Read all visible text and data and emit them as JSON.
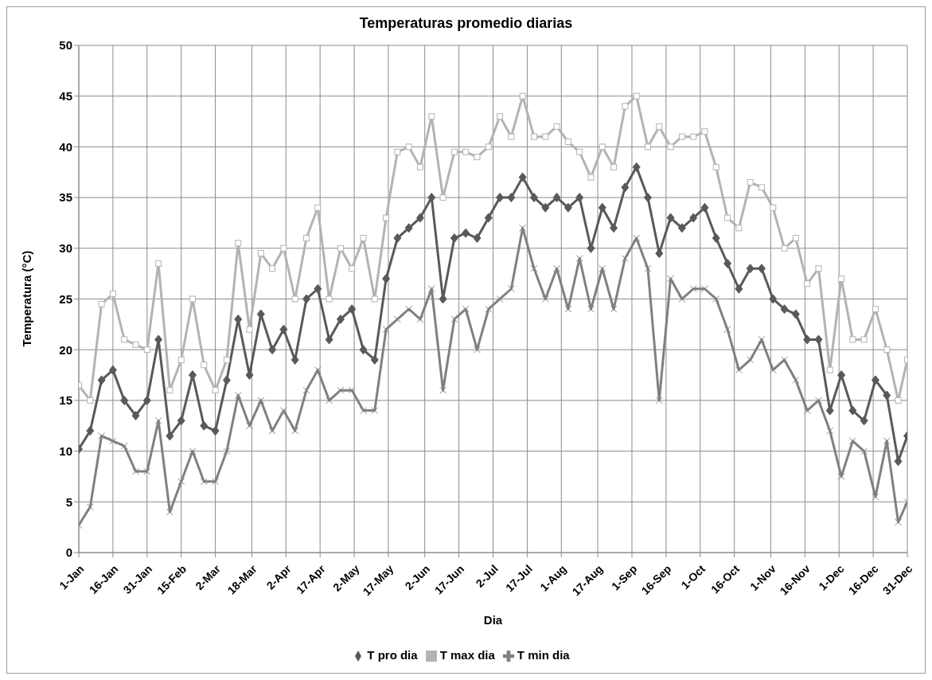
{
  "chart_data": {
    "type": "line",
    "title": "Temperaturas promedio diarias",
    "xlabel": "Dia",
    "ylabel": "Temperatura (°C)",
    "x": [
      "--01-01",
      "--01-06",
      "--01-11",
      "--01-16",
      "--01-21",
      "--01-26",
      "--01-31",
      "--02-05",
      "--02-10",
      "--02-15",
      "--02-20",
      "--02-25",
      "--03-02",
      "--03-07",
      "--03-12",
      "--03-17",
      "--03-22",
      "--03-27",
      "--04-01",
      "--04-06",
      "--04-11",
      "--04-16",
      "--04-21",
      "--04-26",
      "--05-01",
      "--05-06",
      "--05-11",
      "--05-16",
      "--05-21",
      "--05-26",
      "--05-31",
      "--06-05",
      "--06-10",
      "--06-15",
      "--06-20",
      "--06-25",
      "--06-30",
      "--07-05",
      "--07-10",
      "--07-15",
      "--07-20",
      "--07-25",
      "--07-30",
      "--08-04",
      "--08-09",
      "--08-14",
      "--08-19",
      "--08-24",
      "--08-29",
      "--09-03",
      "--09-08",
      "--09-13",
      "--09-18",
      "--09-23",
      "--09-28",
      "--10-03",
      "--10-08",
      "--10-13",
      "--10-18",
      "--10-23",
      "--10-28",
      "--11-02",
      "--11-07",
      "--11-12",
      "--11-17",
      "--11-22",
      "--11-27",
      "--12-02",
      "--12-07",
      "--12-12",
      "--12-17",
      "--12-22",
      "--12-27",
      "--12-31"
    ],
    "series": [
      {
        "name": "T pro dia",
        "color": "#595959",
        "marker": "diamond",
        "values": [
          10.2,
          12,
          17,
          18,
          15,
          13.5,
          15,
          21,
          11.5,
          13,
          17.5,
          12.5,
          12,
          17,
          23,
          17.5,
          23.5,
          20,
          22,
          19,
          25,
          26,
          21,
          23,
          24,
          20,
          19,
          27,
          31,
          32,
          33,
          35,
          25,
          31,
          31.5,
          31,
          33,
          35,
          35,
          37,
          35,
          34,
          35,
          34,
          35,
          30,
          34,
          32,
          36,
          38,
          35,
          29.5,
          33,
          32,
          33,
          34,
          31,
          28.5,
          26,
          28,
          28,
          25,
          24,
          23.5,
          21,
          21,
          14,
          17.5,
          14,
          13,
          17,
          15.5,
          9,
          11.5
        ]
      },
      {
        "name": "T max dia",
        "color": "#b3b3b3",
        "marker": "square",
        "values": [
          16.5,
          15,
          24.5,
          25.5,
          21,
          20.5,
          20,
          28.5,
          16,
          19,
          25,
          18.5,
          16,
          19,
          30.5,
          22,
          29.5,
          28,
          30,
          25,
          31,
          34,
          25,
          30,
          28,
          31,
          25,
          33,
          39.5,
          40,
          38,
          43,
          35,
          39.5,
          39.5,
          39,
          40,
          43,
          41,
          45,
          41,
          41,
          42,
          40.5,
          39.5,
          37,
          40,
          38,
          44,
          45,
          40,
          42,
          40,
          41,
          41,
          41.5,
          38,
          33,
          32,
          36.5,
          36,
          34,
          30,
          31,
          26.5,
          28,
          18,
          27,
          21,
          21,
          24,
          20,
          15,
          19
        ]
      },
      {
        "name": "T min dia",
        "color": "#808080",
        "marker": "cross",
        "values": [
          2.7,
          4.5,
          11.5,
          11,
          10.5,
          8,
          8,
          13,
          4,
          7,
          10,
          7,
          7,
          10,
          15.5,
          12.5,
          15,
          12,
          14,
          12,
          16,
          18,
          15,
          16,
          16,
          14,
          14,
          22,
          23,
          24,
          23,
          26,
          16,
          23,
          24,
          20,
          24,
          25,
          26,
          32,
          28,
          25,
          28,
          24,
          29,
          24,
          28,
          24,
          29,
          31,
          28,
          15,
          27,
          25,
          26,
          26,
          25,
          22,
          18,
          19,
          21,
          18,
          19,
          17,
          14,
          15,
          12,
          7.5,
          11,
          10,
          5.5,
          11,
          3,
          5
        ]
      }
    ],
    "xlim": [
      "--01-01",
      "--12-31"
    ],
    "xticks": [
      {
        "value": "--01-01",
        "label": "1-Jan"
      },
      {
        "value": "--01-16",
        "label": "16-Jan"
      },
      {
        "value": "--01-31",
        "label": "31-Jan"
      },
      {
        "value": "--02-15",
        "label": "15-Feb"
      },
      {
        "value": "--03-02",
        "label": "2-Mar"
      },
      {
        "value": "--03-18",
        "label": "18-Mar"
      },
      {
        "value": "--04-02",
        "label": "2-Apr"
      },
      {
        "value": "--04-17",
        "label": "17-Apr"
      },
      {
        "value": "--05-02",
        "label": "2-May"
      },
      {
        "value": "--05-17",
        "label": "17-May"
      },
      {
        "value": "--06-02",
        "label": "2-Jun"
      },
      {
        "value": "--06-17",
        "label": "17-Jun"
      },
      {
        "value": "--07-02",
        "label": "2-Jul"
      },
      {
        "value": "--07-17",
        "label": "17-Jul"
      },
      {
        "value": "--08-01",
        "label": "1-Aug"
      },
      {
        "value": "--08-17",
        "label": "17-Aug"
      },
      {
        "value": "--09-01",
        "label": "1-Sep"
      },
      {
        "value": "--09-16",
        "label": "16-Sep"
      },
      {
        "value": "--10-01",
        "label": "1-Oct"
      },
      {
        "value": "--10-16",
        "label": "16-Oct"
      },
      {
        "value": "--11-01",
        "label": "1-Nov"
      },
      {
        "value": "--11-16",
        "label": "16-Nov"
      },
      {
        "value": "--12-01",
        "label": "1-Dec"
      },
      {
        "value": "--12-16",
        "label": "16-Dec"
      },
      {
        "value": "--12-31",
        "label": "31-Dec"
      }
    ],
    "ylim": [
      0,
      50
    ],
    "yticks": [
      0,
      5,
      10,
      15,
      20,
      25,
      30,
      35,
      40,
      45,
      50
    ],
    "grid": true,
    "legend": "bottom"
  }
}
